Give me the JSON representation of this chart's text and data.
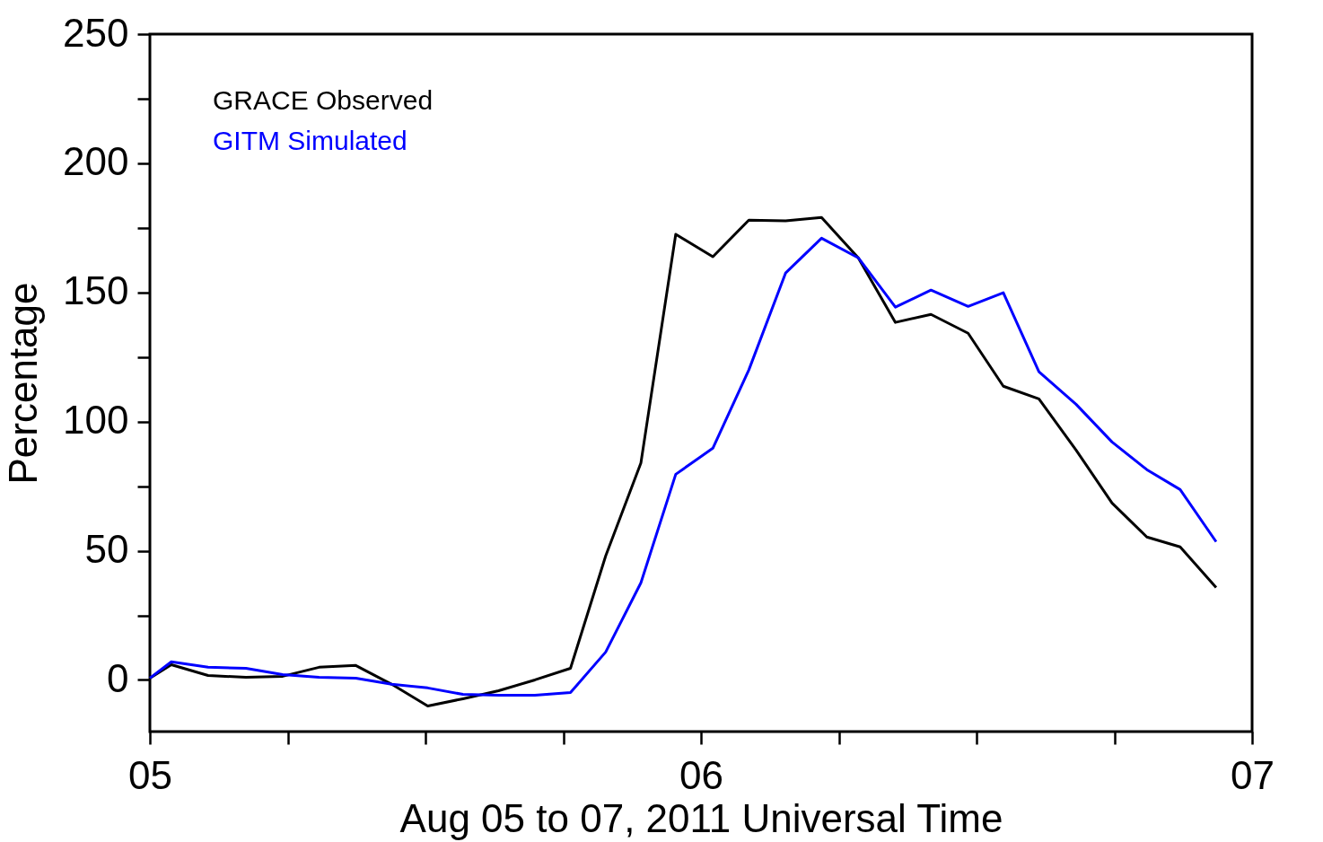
{
  "chart_data": {
    "type": "line",
    "xlabel": "Aug 05 to 07, 2011 Universal Time",
    "ylabel": "Percentage",
    "x": [
      "2011-08-05T00:00",
      "2011-08-05T00:56",
      "2011-08-05T02:32",
      "2011-08-05T04:11",
      "2011-08-05T05:47",
      "2011-08-05T07:22",
      "2011-08-05T08:58",
      "2011-08-05T10:32",
      "2011-08-05T12:06",
      "2011-08-05T13:38",
      "2011-08-05T15:11",
      "2011-08-05T16:46",
      "2011-08-05T18:19",
      "2011-08-05T19:51",
      "2011-08-05T21:23",
      "2011-08-05T22:54",
      "2011-08-06T00:31",
      "2011-08-06T02:05",
      "2011-08-06T03:41",
      "2011-08-06T05:15",
      "2011-08-06T06:51",
      "2011-08-06T08:28",
      "2011-08-06T10:01",
      "2011-08-06T11:38",
      "2011-08-06T13:10",
      "2011-08-06T14:43",
      "2011-08-06T16:20",
      "2011-08-06T17:54",
      "2011-08-06T19:25",
      "2011-08-06T20:52",
      "2011-08-06T22:26"
    ],
    "series": [
      {
        "name": "GRACE Observed",
        "color": "#000000",
        "values": [
          0.7,
          5.9,
          1.7,
          1.0,
          1.4,
          4.9,
          5.6,
          -1.7,
          -10.1,
          -7.3,
          -4.2,
          0,
          4.5,
          48,
          84,
          172.5,
          163.8,
          178,
          177.7,
          179,
          163.4,
          138.4,
          141.5,
          134.2,
          113.7,
          108.8,
          89,
          68.5,
          55.3,
          51.5,
          35.8
        ]
      },
      {
        "name": "GITM Simulated",
        "color": "#0000ff",
        "values": [
          0.7,
          7,
          4.9,
          4.5,
          2.1,
          1,
          0.7,
          -1.7,
          -3.1,
          -5.6,
          -5.9,
          -5.9,
          -4.9,
          10.8,
          37.6,
          79.6,
          89.7,
          120,
          157.5,
          171,
          163.4,
          144.3,
          150.9,
          144.6,
          149.9,
          119.3,
          106.7,
          92.1,
          81.4,
          73.7,
          53.5
        ]
      }
    ],
    "xlim": [
      "2011-08-05",
      "2011-08-07"
    ],
    "xticks": [
      {
        "value": "2011-08-05",
        "label": "05"
      },
      {
        "value": "2011-08-05T06:00",
        "label": null
      },
      {
        "value": "2011-08-05T12:00",
        "label": null
      },
      {
        "value": "2011-08-05T18:00",
        "label": null
      },
      {
        "value": "2011-08-06",
        "label": "06"
      },
      {
        "value": "2011-08-06T06:00",
        "label": null
      },
      {
        "value": "2011-08-06T12:00",
        "label": null
      },
      {
        "value": "2011-08-06T18:00",
        "label": null
      },
      {
        "value": "2011-08-07",
        "label": "07"
      }
    ],
    "ylim": [
      -20,
      250
    ],
    "yticks": [
      0,
      {
        "value": 25,
        "label": null
      },
      50,
      {
        "value": 75,
        "label": null
      },
      100,
      {
        "value": 125,
        "label": null
      },
      150,
      {
        "value": 175,
        "label": null
      },
      200,
      {
        "value": 225,
        "label": null
      },
      250
    ],
    "grid": false,
    "legend": "top left",
    "line_style": "solid",
    "marker": "none"
  }
}
